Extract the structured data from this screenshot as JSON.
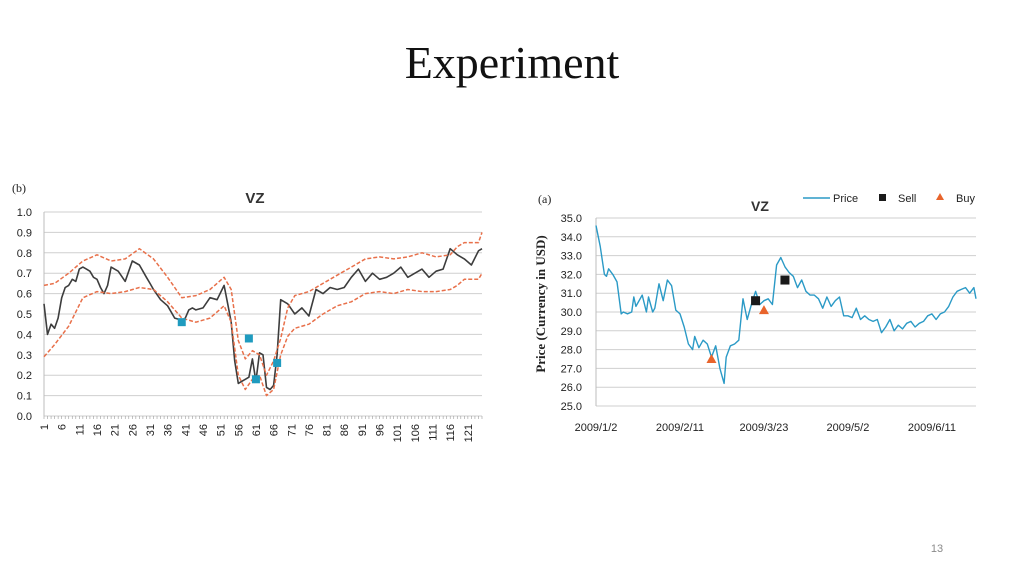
{
  "slide": {
    "title": "Experiment",
    "page_number": "13"
  },
  "chart_data": [
    {
      "panel_label": "(b)",
      "title": "VZ",
      "type": "line",
      "ylim": [
        0.0,
        1.0
      ],
      "y_ticks": [
        "0.0",
        "0.1",
        "0.2",
        "0.3",
        "0.4",
        "0.5",
        "0.6",
        "0.7",
        "0.8",
        "0.9",
        "1.0"
      ],
      "x_range": [
        1,
        125
      ],
      "x_ticks": [
        "1",
        "6",
        "11",
        "16",
        "21",
        "26",
        "31",
        "36",
        "41",
        "46",
        "51",
        "56",
        "61",
        "66",
        "71",
        "76",
        "81",
        "86",
        "91",
        "96",
        "101",
        "106",
        "111",
        "116",
        "121"
      ],
      "grid": "horizontal",
      "colors": {
        "line": "#3d3d3d",
        "band": "#e8704a",
        "marker": "#1f9bbf"
      },
      "series": [
        {
          "x": [
            1,
            2,
            3,
            4,
            5,
            6,
            7,
            8,
            9,
            10,
            11,
            12,
            13,
            14,
            15,
            16,
            17,
            18,
            19,
            20,
            22,
            24,
            26,
            28,
            30,
            31,
            32,
            34,
            36,
            38,
            40,
            41,
            42,
            43,
            44,
            46,
            48,
            50,
            52,
            53,
            54,
            55,
            56,
            57,
            58,
            59,
            60,
            61,
            62,
            63,
            64,
            65,
            66,
            67,
            68,
            70,
            72,
            74,
            76,
            78,
            80,
            82,
            84,
            86,
            88,
            90,
            92,
            94,
            96,
            98,
            100,
            102,
            104,
            106,
            108,
            110,
            112,
            114,
            116,
            118,
            120,
            122,
            124,
            125
          ],
          "values": [
            0.55,
            0.4,
            0.45,
            0.43,
            0.48,
            0.58,
            0.63,
            0.64,
            0.67,
            0.66,
            0.72,
            0.73,
            0.72,
            0.71,
            0.68,
            0.67,
            0.63,
            0.6,
            0.64,
            0.73,
            0.71,
            0.66,
            0.76,
            0.74,
            0.68,
            0.65,
            0.62,
            0.57,
            0.54,
            0.48,
            0.47,
            0.48,
            0.52,
            0.53,
            0.52,
            0.53,
            0.58,
            0.57,
            0.64,
            0.55,
            0.46,
            0.27,
            0.16,
            0.17,
            0.18,
            0.19,
            0.28,
            0.17,
            0.31,
            0.3,
            0.14,
            0.13,
            0.15,
            0.3,
            0.57,
            0.55,
            0.5,
            0.53,
            0.49,
            0.62,
            0.6,
            0.63,
            0.62,
            0.63,
            0.68,
            0.72,
            0.66,
            0.7,
            0.67,
            0.68,
            0.7,
            0.73,
            0.68,
            0.7,
            0.72,
            0.68,
            0.71,
            0.72,
            0.82,
            0.79,
            0.77,
            0.74,
            0.81,
            0.82
          ]
        },
        {
          "name": "upper band",
          "x": [
            1,
            4,
            8,
            12,
            16,
            20,
            24,
            28,
            32,
            36,
            40,
            44,
            48,
            52,
            54,
            56,
            58,
            60,
            62,
            64,
            66,
            68,
            70,
            72,
            76,
            80,
            84,
            88,
            92,
            96,
            100,
            104,
            108,
            112,
            116,
            118,
            120,
            124,
            125
          ],
          "values": [
            0.64,
            0.65,
            0.7,
            0.76,
            0.79,
            0.76,
            0.77,
            0.82,
            0.77,
            0.68,
            0.58,
            0.59,
            0.62,
            0.68,
            0.62,
            0.37,
            0.28,
            0.32,
            0.3,
            0.2,
            0.27,
            0.38,
            0.53,
            0.59,
            0.61,
            0.65,
            0.69,
            0.73,
            0.77,
            0.78,
            0.77,
            0.78,
            0.8,
            0.78,
            0.79,
            0.83,
            0.85,
            0.85,
            0.9
          ]
        },
        {
          "name": "lower band",
          "x": [
            1,
            4,
            8,
            12,
            16,
            20,
            24,
            28,
            32,
            36,
            40,
            44,
            48,
            52,
            54,
            56,
            58,
            60,
            62,
            64,
            66,
            68,
            70,
            72,
            76,
            80,
            84,
            88,
            92,
            96,
            100,
            104,
            108,
            112,
            116,
            118,
            120,
            124,
            125
          ],
          "values": [
            0.29,
            0.35,
            0.44,
            0.58,
            0.61,
            0.6,
            0.61,
            0.63,
            0.62,
            0.56,
            0.48,
            0.46,
            0.48,
            0.54,
            0.46,
            0.2,
            0.13,
            0.18,
            0.2,
            0.1,
            0.13,
            0.3,
            0.39,
            0.43,
            0.45,
            0.5,
            0.54,
            0.56,
            0.6,
            0.61,
            0.6,
            0.62,
            0.61,
            0.61,
            0.62,
            0.64,
            0.67,
            0.67,
            0.7
          ]
        }
      ],
      "markers": {
        "x": [
          40,
          59,
          61,
          67
        ],
        "values": [
          0.46,
          0.38,
          0.18,
          0.26
        ]
      }
    },
    {
      "panel_label": "(a)",
      "title": "VZ",
      "type": "line",
      "ylabel": "Price (Currency in USD)",
      "ylim": [
        25.0,
        35.0
      ],
      "y_ticks": [
        "25.0",
        "26.0",
        "27.0",
        "28.0",
        "29.0",
        "30.0",
        "31.0",
        "32.0",
        "33.0",
        "34.0",
        "35.0"
      ],
      "x_range": [
        "2009/1/2",
        "2009/7/2"
      ],
      "x_ticks": [
        "2009/1/2",
        "2009/2/11",
        "2009/3/23",
        "2009/5/2",
        "2009/6/11"
      ],
      "grid": "horizontal",
      "legend": {
        "position": "top-right",
        "items": [
          "Price",
          "Sell",
          "Buy"
        ]
      },
      "colors": {
        "price": "#2b9ac6",
        "sell": "#1a1a1a",
        "buy": "#e8642c"
      },
      "series": [
        {
          "name": "Price",
          "x": [
            "2009/1/2",
            "2009/1/4",
            "2009/1/6",
            "2009/1/7",
            "2009/1/8",
            "2009/1/10",
            "2009/1/12",
            "2009/1/14",
            "2009/1/15",
            "2009/1/17",
            "2009/1/19",
            "2009/1/20",
            "2009/1/21",
            "2009/1/22",
            "2009/1/24",
            "2009/1/26",
            "2009/1/27",
            "2009/1/29",
            "2009/1/30",
            "2009/2/1",
            "2009/2/3",
            "2009/2/5",
            "2009/2/7",
            "2009/2/9",
            "2009/2/11",
            "2009/2/13",
            "2009/2/15",
            "2009/2/17",
            "2009/2/18",
            "2009/2/20",
            "2009/2/22",
            "2009/2/24",
            "2009/2/26",
            "2009/2/28",
            "2009/3/2",
            "2009/3/4",
            "2009/3/5",
            "2009/3/7",
            "2009/3/9",
            "2009/3/11",
            "2009/3/13",
            "2009/3/15",
            "2009/3/17",
            "2009/3/19",
            "2009/3/21",
            "2009/3/23",
            "2009/3/25",
            "2009/3/27",
            "2009/3/29",
            "2009/3/31",
            "2009/4/2",
            "2009/4/4",
            "2009/4/6",
            "2009/4/8",
            "2009/4/10",
            "2009/4/12",
            "2009/4/14",
            "2009/4/16",
            "2009/4/18",
            "2009/4/20",
            "2009/4/22",
            "2009/4/24",
            "2009/4/26",
            "2009/4/28",
            "2009/4/30",
            "2009/5/2",
            "2009/5/4",
            "2009/5/6",
            "2009/5/8",
            "2009/5/10",
            "2009/5/12",
            "2009/5/14",
            "2009/5/16",
            "2009/5/18",
            "2009/5/20",
            "2009/5/22",
            "2009/5/24",
            "2009/5/26",
            "2009/5/28",
            "2009/5/30",
            "2009/6/1",
            "2009/6/3",
            "2009/6/5",
            "2009/6/7",
            "2009/6/9",
            "2009/6/11",
            "2009/6/13",
            "2009/6/15",
            "2009/6/17",
            "2009/6/19",
            "2009/6/21",
            "2009/6/23",
            "2009/6/25",
            "2009/6/27",
            "2009/6/29",
            "2009/7/1",
            "2009/7/2"
          ],
          "values": [
            34.6,
            33.5,
            32.0,
            31.9,
            32.3,
            32.0,
            31.6,
            29.9,
            30.0,
            29.9,
            30.0,
            30.8,
            30.3,
            30.5,
            30.9,
            30.0,
            30.8,
            30.0,
            30.2,
            31.5,
            30.6,
            31.7,
            31.4,
            30.1,
            29.9,
            29.2,
            28.3,
            28.0,
            28.7,
            28.1,
            28.5,
            28.3,
            27.6,
            28.2,
            27.0,
            26.2,
            27.6,
            28.2,
            28.3,
            28.5,
            30.7,
            29.6,
            30.4,
            31.1,
            30.4,
            30.6,
            30.7,
            30.4,
            32.5,
            32.9,
            32.4,
            32.1,
            31.9,
            31.3,
            31.7,
            31.1,
            30.9,
            30.9,
            30.7,
            30.2,
            30.8,
            30.3,
            30.6,
            30.8,
            29.8,
            29.8,
            29.7,
            30.2,
            29.6,
            29.8,
            29.6,
            29.5,
            29.6,
            28.9,
            29.2,
            29.6,
            29.0,
            29.3,
            29.1,
            29.4,
            29.5,
            29.2,
            29.4,
            29.5,
            29.8,
            29.9,
            29.6,
            29.9,
            30.0,
            30.3,
            30.8,
            31.1,
            31.2,
            31.3,
            31.0,
            31.3,
            30.7
          ]
        }
      ],
      "sell_points": {
        "x": [
          "2009/3/19",
          "2009/4/2"
        ],
        "values": [
          30.6,
          31.7
        ]
      },
      "buy_points": {
        "x": [
          "2009/2/26",
          "2009/3/23"
        ],
        "values": [
          27.5,
          30.1
        ]
      }
    }
  ]
}
